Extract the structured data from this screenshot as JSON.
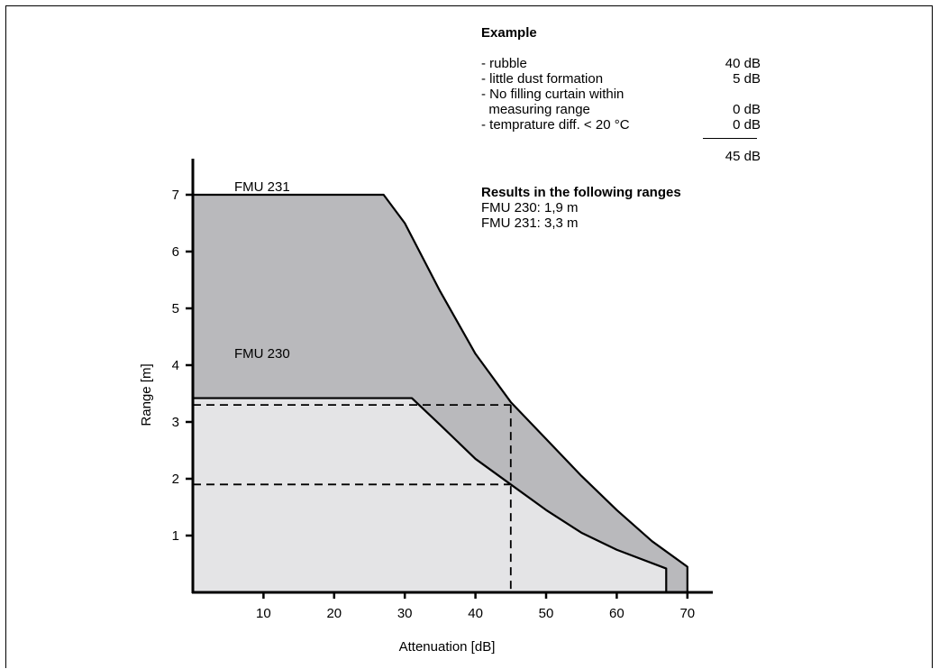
{
  "chart_data": {
    "type": "area",
    "xlabel": "Attenuation [dB]",
    "ylabel": "Range [m]",
    "xlim": [
      0,
      72
    ],
    "ylim": [
      0,
      7.5
    ],
    "xticks": [
      "10",
      "20",
      "30",
      "40",
      "50",
      "60",
      "70"
    ],
    "yticks": [
      "1",
      "2",
      "3",
      "4",
      "5",
      "6",
      "7"
    ],
    "grid": false,
    "series": [
      {
        "name": "FMU 231",
        "color": "#b9b9bc",
        "x": [
          0,
          27,
          30,
          35,
          40,
          45,
          50,
          55,
          60,
          65,
          70,
          70
        ],
        "y": [
          7,
          7,
          6.5,
          5.3,
          4.2,
          3.35,
          2.7,
          2.05,
          1.45,
          0.9,
          0.45,
          0
        ]
      },
      {
        "name": "FMU 230",
        "color": "#e4e4e6",
        "x": [
          0,
          31,
          35,
          40,
          45,
          50,
          55,
          60,
          67,
          67
        ],
        "y": [
          3.42,
          3.42,
          2.95,
          2.35,
          1.9,
          1.45,
          1.05,
          0.75,
          0.42,
          0
        ]
      }
    ],
    "reference_lines": [
      {
        "x": 45,
        "y": 3.3
      },
      {
        "x": 45,
        "y": 1.9
      }
    ]
  },
  "example": {
    "title": "Example",
    "items": [
      {
        "label": "- rubble",
        "value": "40 dB"
      },
      {
        "label": "- little dust formation",
        "value": "5 dB"
      },
      {
        "label": "- No filling curtain within",
        "value": ""
      },
      {
        "label": "  measuring range",
        "value": "0 dB"
      },
      {
        "label": "- temprature diff. < 20 °C",
        "value": "0 dB"
      }
    ],
    "total": "45 dB",
    "results_title": "Results in the following ranges",
    "results": [
      "FMU 230: 1,9 m",
      "FMU 231: 3,3 m"
    ]
  }
}
